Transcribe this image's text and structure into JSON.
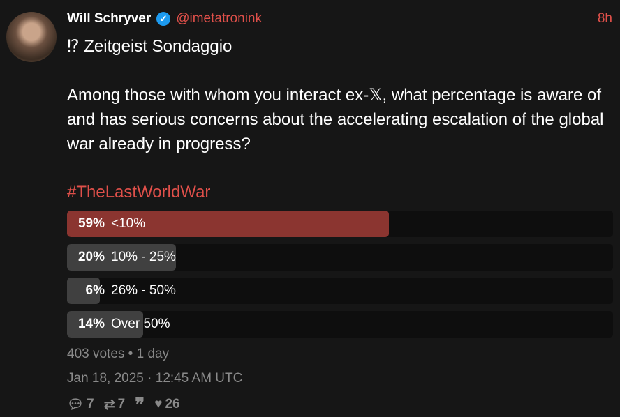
{
  "author": {
    "name": "Will Schryver",
    "handle": "@imetatronink",
    "verified": true,
    "time": "8h"
  },
  "title": "⁉ Zeitgeist Sondaggio",
  "body": "Among those with whom you interact ex-𝕏, what percentage is aware of and has serious concerns about the accelerating escalation of the global war already in progress?",
  "hashtag": "#TheLastWorldWar",
  "poll": {
    "options": [
      {
        "percent": "59%",
        "value": 59,
        "label": "<10%",
        "leading": true
      },
      {
        "percent": "20%",
        "value": 20,
        "label": "10% - 25%"
      },
      {
        "percent": "6%",
        "value": 6,
        "label": "26% - 50%"
      },
      {
        "percent": "14%",
        "value": 14,
        "label": "Over 50%"
      }
    ],
    "summary": "403 votes • 1 day"
  },
  "date": "Jan 18, 2025 · 12:45 AM UTC",
  "stats": {
    "replies": "7",
    "retweets": "7",
    "quotes": "",
    "likes": "26"
  },
  "colors": {
    "accent": "#e0504a",
    "leading_bar": "#8b3530",
    "bar": "#404040"
  }
}
